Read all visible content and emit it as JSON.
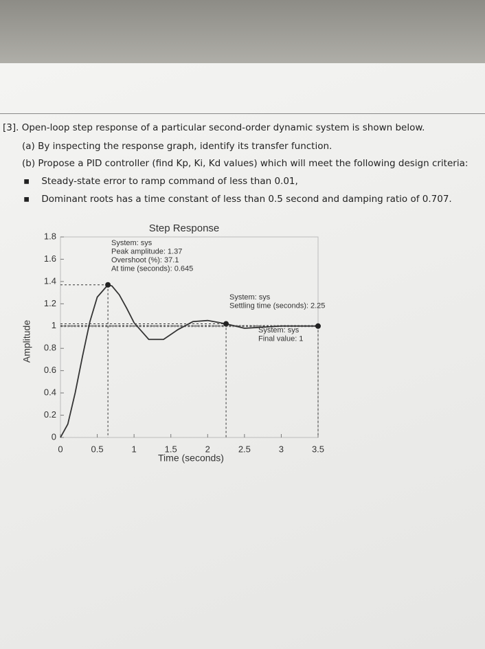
{
  "question": {
    "heading": "[3]. Open-loop step response of a particular second-order dynamic system is shown below.",
    "parts": [
      "(a) By inspecting the response graph, identify its transfer function.",
      "(b) Propose a PID controller (find Kp, Ki, Kd values) which will meet the following design criteria:"
    ],
    "criteria": [
      "Steady-state error to ramp command of less than 0.01,",
      "Dominant roots has a time constant of less than 0.5 second and damping ratio of 0.707."
    ]
  },
  "chart_data": {
    "type": "line",
    "title": "Step Response",
    "xlabel": "Time (seconds)",
    "ylabel": "Amplitude",
    "x": [
      0,
      0.1,
      0.2,
      0.3,
      0.4,
      0.5,
      0.645,
      0.7,
      0.8,
      0.9,
      1.0,
      1.2,
      1.4,
      1.6,
      1.8,
      2.0,
      2.25,
      2.5,
      3.0,
      3.5
    ],
    "series": [
      {
        "name": "sys",
        "color": "#333333",
        "values": [
          0,
          0.12,
          0.4,
          0.73,
          1.04,
          1.26,
          1.37,
          1.36,
          1.28,
          1.16,
          1.03,
          0.88,
          0.88,
          0.97,
          1.04,
          1.05,
          1.02,
          0.98,
          1.0,
          1.0
        ]
      }
    ],
    "xlim": [
      0,
      3.5
    ],
    "xticks": [
      0,
      0.5,
      1,
      1.5,
      2,
      2.5,
      3,
      3.5
    ],
    "ylim": [
      0,
      1.8
    ],
    "yticks": [
      0,
      0.2,
      0.4,
      0.6,
      0.8,
      1,
      1.2,
      1.4,
      1.6,
      1.8
    ],
    "grid": false,
    "markers": [
      {
        "x": 0.645,
        "y": 1.37
      },
      {
        "x": 2.25,
        "y": 1.02
      },
      {
        "x": 3.5,
        "y": 1
      }
    ],
    "annotations": [
      [
        "System: sys",
        "Peak amplitude: 1.37",
        "Overshoot (%): 37.1",
        "At time (seconds): 0.645"
      ],
      [
        "System: sys",
        "Settling time (seconds): 2.25"
      ],
      [
        "System: sys",
        "Final value: 1"
      ]
    ]
  }
}
